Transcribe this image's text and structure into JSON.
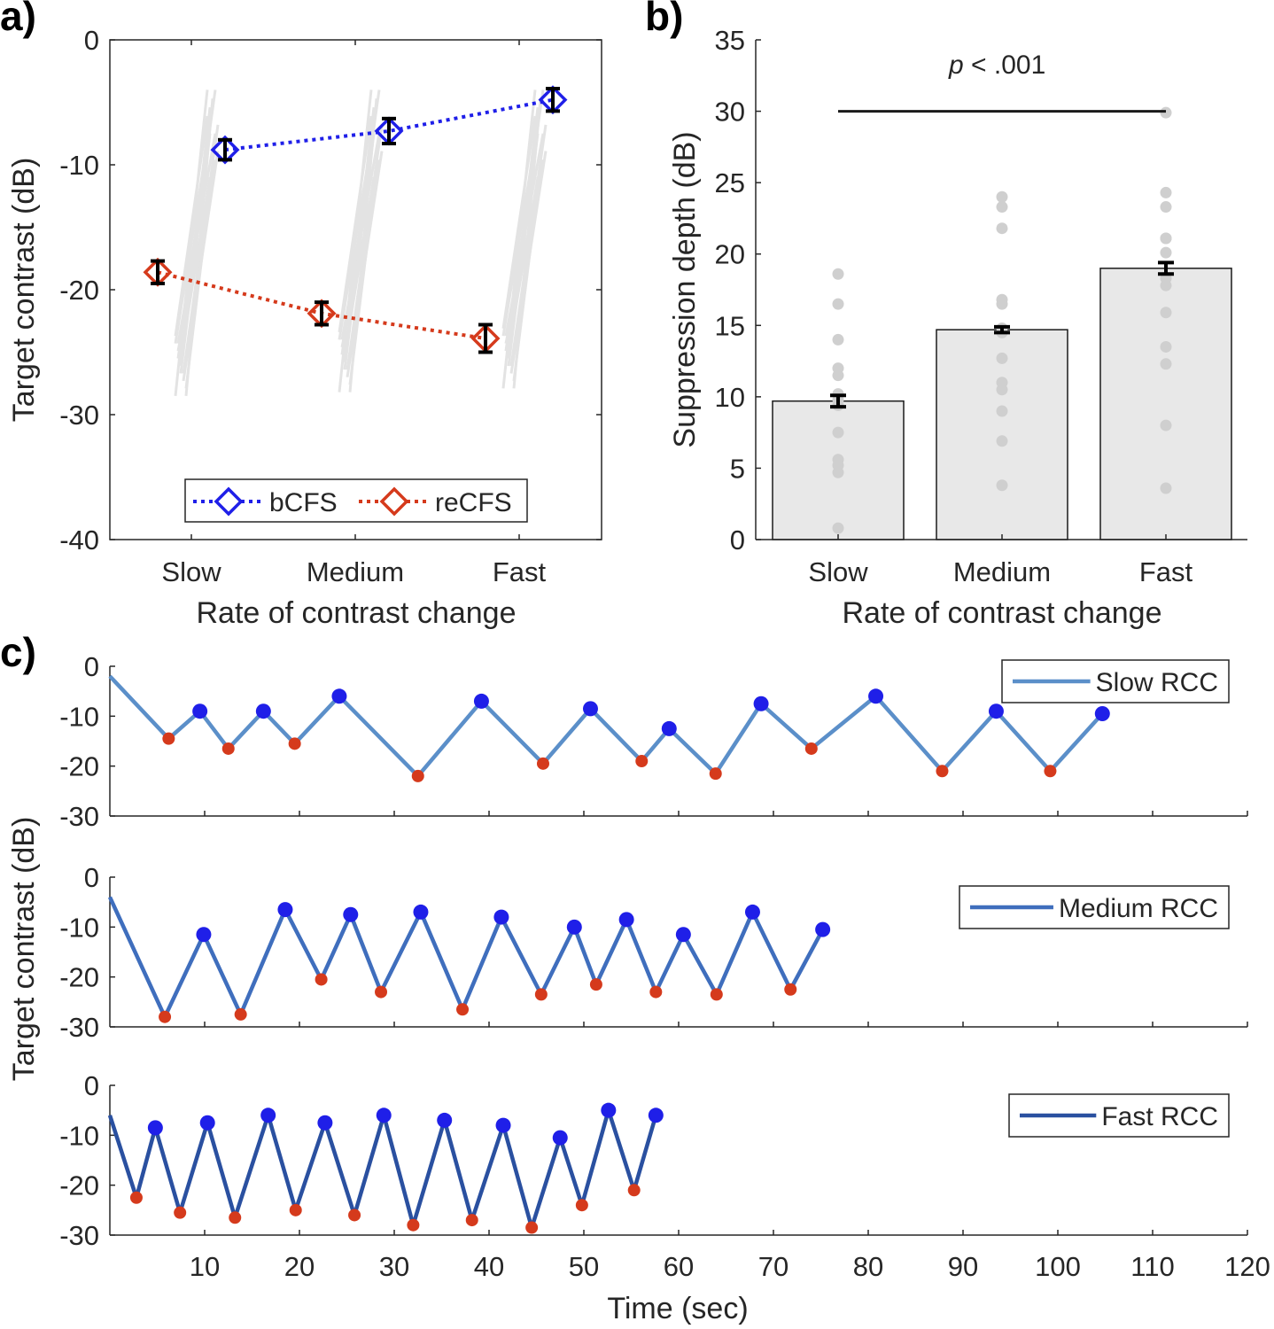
{
  "panels": {
    "a": {
      "label": "a)",
      "ylabel": "Target contrast (dB)",
      "xlabel": "Rate of contrast change",
      "yticks": [
        "0",
        "-10",
        "-20",
        "-30",
        "-40"
      ],
      "xticks": [
        "Slow",
        "Medium",
        "Fast"
      ],
      "legend": [
        "bCFS",
        "reCFS"
      ]
    },
    "b": {
      "label": "b)",
      "ylabel": "Suppression depth (dB)",
      "xlabel": "Rate of contrast change",
      "yticks": [
        "0",
        "5",
        "10",
        "15",
        "20",
        "25",
        "30",
        "35"
      ],
      "xticks": [
        "Slow",
        "Medium",
        "Fast"
      ],
      "significance_prefix": "p",
      "significance_rest": " < .001"
    },
    "c": {
      "label": "c)",
      "ylabel": "Target contrast (dB)",
      "xlabel": "Time (sec)",
      "yticks": [
        "0",
        "-10",
        "-20",
        "-30"
      ],
      "xticks": [
        "10",
        "20",
        "30",
        "40",
        "50",
        "60",
        "70",
        "80",
        "90",
        "100",
        "110",
        "120"
      ]
    }
  },
  "chart_data": [
    {
      "type": "line",
      "title": "",
      "xlabel": "Rate of contrast change",
      "ylabel": "Target contrast (dB)",
      "ylim": [
        -40,
        0
      ],
      "categories": [
        "Slow",
        "Medium",
        "Fast"
      ],
      "series": [
        {
          "name": "bCFS",
          "color": "#1f1fe8",
          "values": [
            -8.8,
            -7.3,
            -4.8
          ],
          "errors": [
            0.8,
            1.0,
            0.9
          ]
        },
        {
          "name": "reCFS",
          "color": "#d53a1c",
          "values": [
            -18.6,
            -21.9,
            -23.9
          ],
          "errors": [
            0.9,
            0.9,
            1.1
          ]
        }
      ]
    },
    {
      "type": "bar",
      "title": "",
      "xlabel": "Rate of contrast change",
      "ylabel": "Suppression depth (dB)",
      "ylim": [
        0,
        35
      ],
      "categories": [
        "Slow",
        "Medium",
        "Fast"
      ],
      "values": [
        9.7,
        14.7,
        19.0
      ],
      "errors": [
        0.4,
        0.2,
        0.4
      ],
      "individual_points": [
        [
          18.6,
          16.5,
          14.0,
          12.0,
          11.5,
          10.2,
          9.8,
          9.4,
          7.5,
          5.6,
          5.2,
          4.7,
          0.8
        ],
        [
          24.0,
          23.3,
          21.8,
          16.8,
          16.5,
          14.8,
          14.5,
          12.7,
          11.0,
          10.5,
          9.0,
          6.9,
          3.8
        ],
        [
          29.9,
          24.3,
          23.3,
          21.1,
          21.1,
          20.1,
          18.3,
          17.8,
          15.9,
          13.5,
          12.3,
          8.0,
          3.6
        ]
      ],
      "significance": {
        "between": [
          "Slow",
          "Fast"
        ],
        "y": 30,
        "text": "p < .001"
      }
    },
    {
      "type": "line",
      "title": "",
      "xlabel": "Time (sec)",
      "ylabel": "Target contrast (dB)",
      "ylim": [
        -30,
        0
      ],
      "xlim": [
        0,
        120
      ],
      "series": [
        {
          "name": "Slow RCC",
          "color": "#5b8fc9",
          "x": [
            0,
            6.2,
            9.5,
            12.5,
            16.2,
            19.5,
            24.2,
            32.5,
            39.2,
            45.7,
            50.7,
            56.1,
            59.0,
            63.9,
            68.7,
            74.0,
            80.8,
            87.8,
            93.5,
            99.2,
            104.7
          ],
          "y": [
            -2,
            -14.5,
            -9,
            -16.5,
            -9,
            -15.5,
            -6,
            -22,
            -7,
            -19.5,
            -8.5,
            -19,
            -12.5,
            -21.5,
            -7.5,
            -16.5,
            -6,
            -21,
            -9,
            -21,
            -9.5
          ]
        },
        {
          "name": "Medium RCC",
          "color": "#3f6ebd",
          "x": [
            0,
            5.8,
            9.9,
            13.8,
            18.5,
            22.3,
            25.4,
            28.6,
            32.8,
            37.2,
            41.3,
            45.5,
            49.0,
            51.3,
            54.5,
            57.6,
            60.5,
            64.0,
            67.8,
            71.8,
            75.2
          ],
          "y": [
            -4,
            -28,
            -11.5,
            -27.5,
            -6.5,
            -20.5,
            -7.5,
            -23,
            -7,
            -26.5,
            -8,
            -23.5,
            -10,
            -21.5,
            -8.5,
            -23,
            -11.5,
            -23.5,
            -7,
            -22.5,
            -10.5
          ]
        },
        {
          "name": "Fast RCC",
          "color": "#2a50a0",
          "x": [
            0,
            2.8,
            4.8,
            7.4,
            10.3,
            13.2,
            16.7,
            19.6,
            22.7,
            25.8,
            28.9,
            32.0,
            35.3,
            38.2,
            41.5,
            44.5,
            47.5,
            49.8,
            52.6,
            55.3,
            57.6
          ],
          "y": [
            -6,
            -22.5,
            -8.5,
            -25.5,
            -7.5,
            -26.5,
            -6,
            -25,
            -7.5,
            -26,
            -6,
            -28,
            -7,
            -27,
            -8,
            -28.5,
            -10.5,
            -24,
            -5,
            -21,
            -6
          ]
        }
      ]
    }
  ]
}
